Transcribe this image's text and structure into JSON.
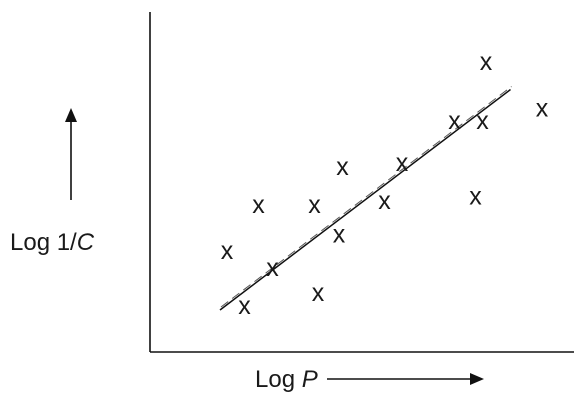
{
  "chart_data": {
    "type": "scatter",
    "title": "",
    "xlabel": {
      "prefix": "Log ",
      "variable": "P"
    },
    "ylabel": {
      "prefix": "Log 1/",
      "variable": "C"
    },
    "marker": "x",
    "points": [
      {
        "x": 1.1,
        "y": 2.4
      },
      {
        "x": 1.35,
        "y": 1.1
      },
      {
        "x": 1.55,
        "y": 3.5
      },
      {
        "x": 1.75,
        "y": 2.0
      },
      {
        "x": 2.4,
        "y": 1.4
      },
      {
        "x": 2.35,
        "y": 3.5
      },
      {
        "x": 2.7,
        "y": 2.8
      },
      {
        "x": 2.75,
        "y": 4.4
      },
      {
        "x": 3.35,
        "y": 3.6
      },
      {
        "x": 3.6,
        "y": 4.5
      },
      {
        "x": 4.35,
        "y": 5.5
      },
      {
        "x": 4.65,
        "y": 3.7
      },
      {
        "x": 4.75,
        "y": 5.5
      },
      {
        "x": 4.8,
        "y": 6.9
      },
      {
        "x": 5.6,
        "y": 5.8
      }
    ],
    "regression": {
      "x": [
        1.0,
        5.15
      ],
      "y": [
        1.0,
        6.25
      ]
    },
    "xlim": [
      0,
      6
    ],
    "ylim": [
      0,
      8
    ],
    "show_ticks": false,
    "grid": false,
    "line_color": "#111111"
  }
}
